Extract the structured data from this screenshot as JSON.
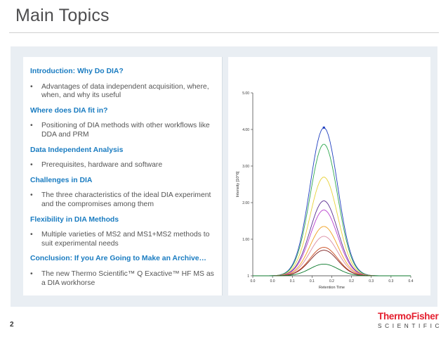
{
  "slide": {
    "title": "Main Topics",
    "number": "2"
  },
  "topics": [
    {
      "heading": "Introduction: Why Do DIA?",
      "bullet": "Advantages of data independent acquisition, where, when, and why its useful"
    },
    {
      "heading": "Where does DIA fit in?",
      "bullet": "Positioning of DIA methods with other workflows like DDA and PRM"
    },
    {
      "heading": "Data Independent Analysis",
      "bullet": "Prerequisites, hardware and software"
    },
    {
      "heading": "Challenges in DIA",
      "bullet": "The three characteristics of the ideal DIA experiment and the compromises among them"
    },
    {
      "heading": "Flexibility in DIA Methods",
      "bullet": "Multiple varieties of MS2 and MS1+MS2 methods to suit experimental needs"
    },
    {
      "heading": "Conclusion: If you Are Going to Make an Archive…",
      "bullet": "The new Thermo Scientific™ Q Exactive™ HF MS as a DIA workhorse"
    }
  ],
  "bullet_char": "•",
  "brand": {
    "top": "ThermoFisher",
    "bottom": "SCIENTIFIC"
  },
  "chart_data": {
    "type": "line",
    "xlabel": "Retention Time",
    "ylabel": "Intensity [10^6]",
    "xlim": [
      0.0,
      0.4
    ],
    "ylim": [
      0,
      5.0
    ],
    "x_ticks": [
      "0.0",
      "0.0",
      "0.1",
      "0.1",
      "0.2",
      "0.2",
      "0.3",
      "0.3",
      "0.4"
    ],
    "y_ticks": [
      "1",
      "1.00",
      "2.00",
      "3.00",
      "4.00",
      "5.00"
    ],
    "peak_x": 0.18,
    "peak_width": 0.035,
    "series": [
      {
        "color": "#1f3fbf",
        "peak": 4.05
      },
      {
        "color": "#2fa84f",
        "peak": 3.6
      },
      {
        "color": "#e8d23a",
        "peak": 2.7
      },
      {
        "color": "#5a2d91",
        "peak": 2.05
      },
      {
        "color": "#b73fcf",
        "peak": 1.8
      },
      {
        "color": "#f0a020",
        "peak": 1.35
      },
      {
        "color": "#d98aa0",
        "peak": 1.08
      },
      {
        "color": "#c94b1f",
        "peak": 0.78
      },
      {
        "color": "#7a1a1a",
        "peak": 0.7
      },
      {
        "color": "#0c7a2c",
        "peak": 0.32
      }
    ]
  }
}
